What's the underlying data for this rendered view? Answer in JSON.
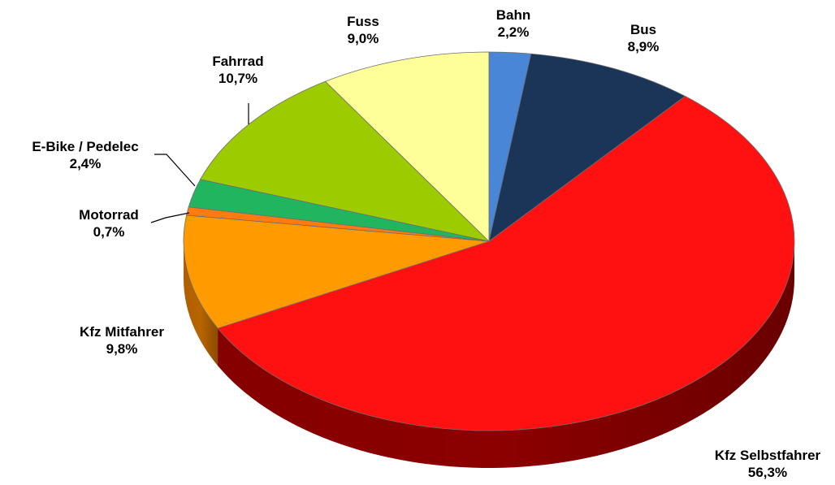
{
  "chart_data": {
    "type": "pie",
    "title": "",
    "start_angle_deg": 90,
    "direction": "clockwise",
    "three_d": true,
    "slices": [
      {
        "name": "Bahn",
        "value": 2.2,
        "value_label": "2,2%",
        "color": "#4a86d8",
        "side_color": "#2a5090"
      },
      {
        "name": "Bus",
        "value": 8.9,
        "value_label": "8,9%",
        "color": "#1b3558",
        "side_color": "#0e1d32"
      },
      {
        "name": "Kfz Selbstfahrer",
        "value": 56.3,
        "value_label": "56,3%",
        "color": "#ff1111",
        "side_color": "#8c0000"
      },
      {
        "name": "Kfz Mitfahrer",
        "value": 9.8,
        "value_label": "9,8%",
        "color": "#ff9a00",
        "side_color": "#b86400"
      },
      {
        "name": "Motorrad",
        "value": 0.7,
        "value_label": "0,7%",
        "color": "#ff7a10",
        "side_color": "#a84a00"
      },
      {
        "name": "E-Bike / Pedelec",
        "value": 2.4,
        "value_label": "2,4%",
        "color": "#22b560",
        "side_color": "#137038"
      },
      {
        "name": "Fahrrad",
        "value": 10.7,
        "value_label": "10,7%",
        "color": "#9ccc00",
        "side_color": "#5f7d00"
      },
      {
        "name": "Fuss",
        "value": 9.0,
        "value_label": "9,0%",
        "color": "#ffff99",
        "side_color": "#c9c96a"
      }
    ]
  }
}
